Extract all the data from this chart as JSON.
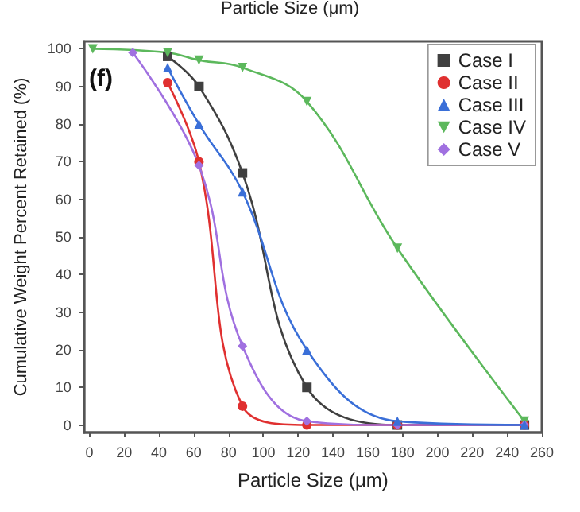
{
  "chart_data": {
    "type": "line",
    "xlabel": "Particle Size (μm)",
    "ylabel": "Cumulative Weight Percent Retained (%)",
    "annotations": [
      "Particle Size (μm)",
      "(f)"
    ],
    "xlim": [
      -3,
      260
    ],
    "xticks": [
      0,
      20,
      40,
      60,
      80,
      100,
      120,
      140,
      160,
      180,
      200,
      220,
      240,
      260
    ],
    "ylim": [
      -2,
      102
    ],
    "yticks": [
      0,
      10,
      20,
      30,
      40,
      50,
      60,
      70,
      80,
      90,
      100
    ],
    "grid": false,
    "legend": "top right",
    "line_style": "solid",
    "series": [
      {
        "name": "Case I",
        "color": "#404040",
        "marker": "square",
        "x": [
          45,
          63,
          88,
          125,
          177,
          250
        ],
        "values": [
          98,
          90,
          67,
          10,
          0,
          0
        ]
      },
      {
        "name": "Case II",
        "color": "#e03030",
        "marker": "circle",
        "x": [
          45,
          63,
          88,
          125,
          177,
          250
        ],
        "values": [
          91,
          70,
          5,
          0,
          0,
          0
        ]
      },
      {
        "name": "Case III",
        "color": "#3a6fd8",
        "marker": "triangle",
        "x": [
          45,
          63,
          88,
          125,
          177,
          250
        ],
        "values": [
          95,
          80,
          62,
          20,
          1,
          0
        ]
      },
      {
        "name": "Case IV",
        "color": "#5cb85c",
        "marker": "triangle_down",
        "x": [
          2,
          45,
          63,
          88,
          125,
          177,
          250
        ],
        "values": [
          100,
          99,
          97,
          95,
          86,
          47,
          1
        ]
      },
      {
        "name": "Case V",
        "color": "#a070e0",
        "marker": "diamond",
        "x": [
          25,
          63,
          88,
          125,
          177,
          250
        ],
        "values": [
          99,
          69,
          21,
          1,
          0,
          0
        ]
      }
    ]
  }
}
